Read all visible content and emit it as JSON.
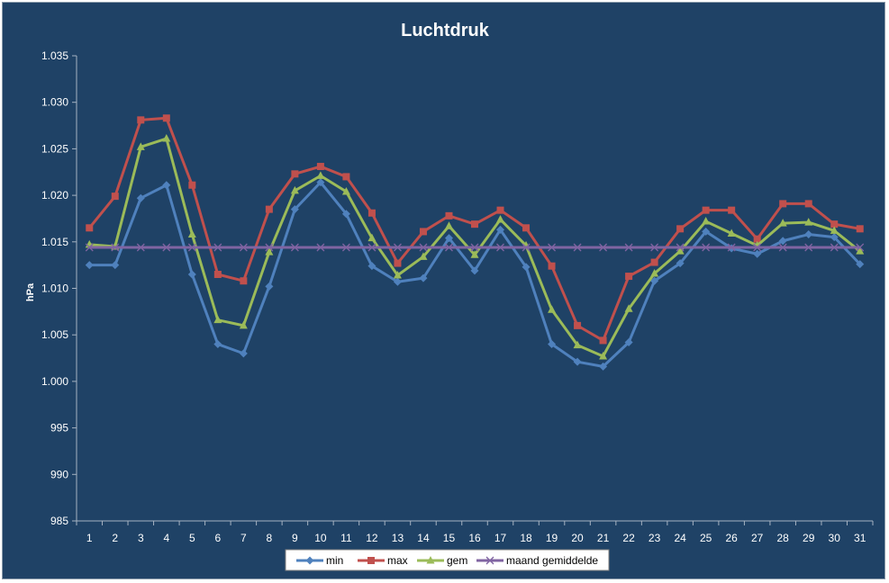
{
  "chart_data": {
    "type": "line",
    "title": "Luchtdruk",
    "xlabel": "",
    "ylabel": "hPa",
    "ylim": [
      985,
      1035
    ],
    "y_ticks": [
      "985",
      "990",
      "995",
      "1.000",
      "1.005",
      "1.010",
      "1.015",
      "1.020",
      "1.025",
      "1.030",
      "1.035"
    ],
    "categories": [
      "1",
      "2",
      "3",
      "4",
      "5",
      "6",
      "7",
      "8",
      "9",
      "10",
      "11",
      "12",
      "13",
      "14",
      "15",
      "16",
      "17",
      "18",
      "19",
      "20",
      "21",
      "22",
      "23",
      "24",
      "25",
      "26",
      "27",
      "28",
      "29",
      "30",
      "31"
    ],
    "grid": false,
    "legend_position": "bottom",
    "series": [
      {
        "name": "min",
        "color": "#4f81bd",
        "marker": "diamond",
        "values": [
          1012.5,
          1012.5,
          1019.7,
          1021.1,
          1011.5,
          1004.0,
          1003.0,
          1010.2,
          1018.5,
          1021.4,
          1018.0,
          1012.4,
          1010.7,
          1011.1,
          1015.4,
          1011.9,
          1016.3,
          1012.3,
          1004.0,
          1002.1,
          1001.6,
          1004.2,
          1010.8,
          1012.7,
          1016.1,
          1014.3,
          1013.7,
          1015.1,
          1015.8,
          1015.5,
          1012.6
        ]
      },
      {
        "name": "max",
        "color": "#c0504d",
        "marker": "square",
        "values": [
          1016.5,
          1019.9,
          1028.1,
          1028.3,
          1021.1,
          1011.5,
          1010.8,
          1018.5,
          1022.3,
          1023.1,
          1022.0,
          1018.1,
          1012.7,
          1016.1,
          1017.8,
          1016.9,
          1018.4,
          1016.5,
          1012.4,
          1006.0,
          1004.4,
          1011.3,
          1012.8,
          1016.4,
          1018.4,
          1018.4,
          1015.3,
          1019.1,
          1019.1,
          1016.9,
          1016.4
        ]
      },
      {
        "name": "gem",
        "color": "#9bbb59",
        "marker": "triangle",
        "values": [
          1014.7,
          1014.5,
          1025.2,
          1026.1,
          1015.8,
          1006.6,
          1006.0,
          1013.9,
          1020.5,
          1022.1,
          1020.4,
          1015.4,
          1011.4,
          1013.4,
          1016.7,
          1013.6,
          1017.4,
          1014.6,
          1007.7,
          1003.9,
          1002.7,
          1007.8,
          1011.6,
          1014.0,
          1017.2,
          1015.9,
          1014.6,
          1017.0,
          1017.1,
          1016.2,
          1014.0
        ]
      },
      {
        "name": "maand gemiddelde",
        "color": "#8064a2",
        "marker": "x",
        "values": [
          1014.4,
          1014.4,
          1014.4,
          1014.4,
          1014.4,
          1014.4,
          1014.4,
          1014.4,
          1014.4,
          1014.4,
          1014.4,
          1014.4,
          1014.4,
          1014.4,
          1014.4,
          1014.4,
          1014.4,
          1014.4,
          1014.4,
          1014.4,
          1014.4,
          1014.4,
          1014.4,
          1014.4,
          1014.4,
          1014.4,
          1014.4,
          1014.4,
          1014.4,
          1014.4,
          1014.4
        ]
      }
    ]
  }
}
